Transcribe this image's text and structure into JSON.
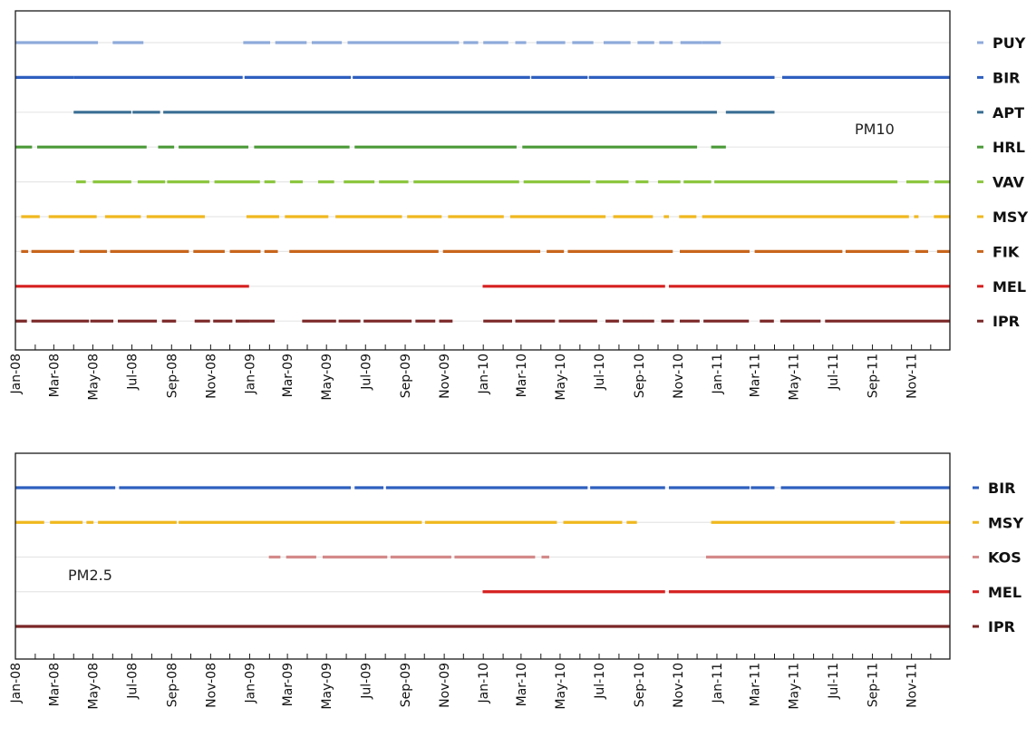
{
  "chart_data": [
    {
      "type": "line",
      "title": "",
      "annotation": "PM10",
      "x_range": [
        "2008-01-01",
        "2011-12-31"
      ],
      "tick_labels": [
        "Jan-08",
        "Mar-08",
        "May-08",
        "Jul-08",
        "Sep-08",
        "Nov-08",
        "Jan-09",
        "Mar-09",
        "May-09",
        "Jul-09",
        "Sep-09",
        "Nov-09",
        "Jan-10",
        "Mar-10",
        "May-10",
        "Jul-10",
        "Sep-10",
        "Nov-10",
        "Jan-11",
        "Mar-11",
        "May-11",
        "Jul-11",
        "Sep-11",
        "Nov-11"
      ],
      "grid": false,
      "legend_placement": "right",
      "series": [
        {
          "name": "PUY",
          "color": "#8eaadb",
          "availability": [
            [
              "2008-01-01",
              "2008-05-09"
            ],
            [
              "2008-06-01",
              "2008-07-19"
            ],
            [
              "2008-12-22",
              "2009-02-02"
            ],
            [
              "2009-02-10",
              "2009-03-31"
            ],
            [
              "2009-04-08",
              "2009-05-25"
            ],
            [
              "2009-06-03",
              "2009-08-27"
            ],
            [
              "2009-08-27",
              "2009-11-24"
            ],
            [
              "2009-12-01",
              "2009-12-24"
            ],
            [
              "2010-01-01",
              "2010-02-09"
            ],
            [
              "2010-02-20",
              "2010-03-09"
            ],
            [
              "2010-03-25",
              "2010-05-09"
            ],
            [
              "2010-05-20",
              "2010-06-22"
            ],
            [
              "2010-07-08",
              "2010-08-19"
            ],
            [
              "2010-08-30",
              "2010-09-25"
            ],
            [
              "2010-10-03",
              "2010-10-24"
            ],
            [
              "2010-11-05",
              "2010-12-09"
            ],
            [
              "2010-12-09",
              "2011-01-07"
            ]
          ]
        },
        {
          "name": "BIR",
          "color": "#2e5fbf",
          "availability": [
            [
              "2008-01-01",
              "2008-04-01"
            ],
            [
              "2008-04-01",
              "2008-12-21"
            ],
            [
              "2008-12-24",
              "2009-06-08"
            ],
            [
              "2009-06-11",
              "2010-03-15"
            ],
            [
              "2010-03-17",
              "2010-06-13"
            ],
            [
              "2010-06-15",
              "2011-04-01"
            ],
            [
              "2011-04-13",
              "2011-12-31"
            ]
          ]
        },
        {
          "name": "APT",
          "color": "#3a6f94",
          "availability": [
            [
              "2008-04-01",
              "2008-06-30"
            ],
            [
              "2008-07-02",
              "2008-08-14"
            ],
            [
              "2008-08-19",
              "2011-01-01"
            ],
            [
              "2011-01-15",
              "2011-04-01"
            ]
          ]
        },
        {
          "name": "HRL",
          "color": "#4b9a38",
          "availability": [
            [
              "2008-01-01",
              "2008-01-27"
            ],
            [
              "2008-02-04",
              "2008-07-24"
            ],
            [
              "2008-08-11",
              "2008-09-05"
            ],
            [
              "2008-09-12",
              "2008-12-30"
            ],
            [
              "2009-01-08",
              "2009-06-06"
            ],
            [
              "2009-06-14",
              "2010-02-22"
            ],
            [
              "2010-03-03",
              "2010-12-01"
            ],
            [
              "2010-12-23",
              "2011-01-15"
            ]
          ]
        },
        {
          "name": "VAV",
          "color": "#8cc63f",
          "availability": [
            [
              "2008-04-05",
              "2008-04-20"
            ],
            [
              "2008-05-01",
              "2008-06-30"
            ],
            [
              "2008-07-10",
              "2008-08-22"
            ],
            [
              "2008-08-25",
              "2008-10-30"
            ],
            [
              "2008-11-07",
              "2009-01-17"
            ],
            [
              "2009-01-24",
              "2009-02-10"
            ],
            [
              "2009-03-05",
              "2009-03-25"
            ],
            [
              "2009-04-18",
              "2009-05-13"
            ],
            [
              "2009-05-28",
              "2009-07-15"
            ],
            [
              "2009-07-22",
              "2009-09-06"
            ],
            [
              "2009-09-14",
              "2010-02-26"
            ],
            [
              "2010-03-05",
              "2010-06-17"
            ],
            [
              "2010-06-26",
              "2010-08-16"
            ],
            [
              "2010-08-27",
              "2010-09-16"
            ],
            [
              "2010-10-01",
              "2010-11-05"
            ],
            [
              "2010-11-10",
              "2010-12-23"
            ],
            [
              "2010-12-28",
              "2011-10-10"
            ],
            [
              "2011-10-24",
              "2011-11-28"
            ],
            [
              "2011-12-07",
              "2011-12-31"
            ]
          ]
        },
        {
          "name": "MSY",
          "color": "#f0b81e",
          "availability": [
            [
              "2008-01-10",
              "2008-02-08"
            ],
            [
              "2008-02-22",
              "2008-05-07"
            ],
            [
              "2008-05-20",
              "2008-07-15"
            ],
            [
              "2008-07-24",
              "2008-10-23"
            ],
            [
              "2008-12-27",
              "2009-02-16"
            ],
            [
              "2009-02-25",
              "2009-05-04"
            ],
            [
              "2009-05-15",
              "2009-08-27"
            ],
            [
              "2009-09-04",
              "2009-10-28"
            ],
            [
              "2009-11-07",
              "2010-02-02"
            ],
            [
              "2010-02-12",
              "2010-07-11"
            ],
            [
              "2010-07-23",
              "2010-09-23"
            ],
            [
              "2010-10-10",
              "2010-10-18"
            ],
            [
              "2010-11-03",
              "2010-11-30"
            ],
            [
              "2010-12-09",
              "2011-10-28"
            ],
            [
              "2011-11-05",
              "2011-11-12"
            ],
            [
              "2011-12-06",
              "2011-12-31"
            ]
          ]
        },
        {
          "name": "FIK",
          "color": "#c8651b",
          "availability": [
            [
              "2008-01-10",
              "2008-01-21"
            ],
            [
              "2008-01-26",
              "2008-04-02"
            ],
            [
              "2008-04-10",
              "2008-05-23"
            ],
            [
              "2008-05-28",
              "2008-09-28"
            ],
            [
              "2008-10-05",
              "2008-11-23"
            ],
            [
              "2008-12-01",
              "2009-01-18"
            ],
            [
              "2009-01-24",
              "2009-02-14"
            ],
            [
              "2009-03-04",
              "2009-10-23"
            ],
            [
              "2009-10-30",
              "2010-03-31"
            ],
            [
              "2010-04-10",
              "2010-05-07"
            ],
            [
              "2010-05-13",
              "2010-10-24"
            ],
            [
              "2010-11-04",
              "2011-02-21"
            ],
            [
              "2011-03-01",
              "2011-07-16"
            ],
            [
              "2011-07-21",
              "2011-10-28"
            ],
            [
              "2011-11-07",
              "2011-11-27"
            ],
            [
              "2011-12-11",
              "2011-12-31"
            ]
          ]
        },
        {
          "name": "MEL",
          "color": "#d62020",
          "availability": [
            [
              "2008-01-01",
              "2008-12-31"
            ],
            [
              "2009-12-31",
              "2010-10-12"
            ],
            [
              "2010-10-18",
              "2011-12-31"
            ]
          ]
        },
        {
          "name": "IPR",
          "color": "#7b2626",
          "availability": [
            [
              "2008-01-01",
              "2008-01-19"
            ],
            [
              "2008-01-26",
              "2008-04-25"
            ],
            [
              "2008-04-27",
              "2008-06-02"
            ],
            [
              "2008-06-09",
              "2008-08-09"
            ],
            [
              "2008-08-17",
              "2008-09-08"
            ],
            [
              "2008-10-07",
              "2008-10-31"
            ],
            [
              "2008-11-05",
              "2008-12-05"
            ],
            [
              "2008-12-10",
              "2009-01-01"
            ],
            [
              "2009-01-01",
              "2009-02-09"
            ],
            [
              "2009-03-24",
              "2009-05-16"
            ],
            [
              "2009-05-20",
              "2009-06-23"
            ],
            [
              "2009-06-28",
              "2009-09-11"
            ],
            [
              "2009-09-17",
              "2009-10-18"
            ],
            [
              "2009-10-24",
              "2009-11-14"
            ],
            [
              "2010-01-01",
              "2010-02-15"
            ],
            [
              "2010-02-20",
              "2010-04-23"
            ],
            [
              "2010-04-29",
              "2010-06-28"
            ],
            [
              "2010-07-11",
              "2010-08-01"
            ],
            [
              "2010-08-07",
              "2010-09-25"
            ],
            [
              "2010-10-06",
              "2010-10-26"
            ],
            [
              "2010-11-04",
              "2010-12-05"
            ],
            [
              "2010-12-11",
              "2011-02-20"
            ],
            [
              "2011-03-09",
              "2011-03-31"
            ],
            [
              "2011-04-10",
              "2011-06-12"
            ],
            [
              "2011-06-19",
              "2011-12-31"
            ]
          ]
        }
      ]
    },
    {
      "type": "line",
      "title": "",
      "annotation": "PM2.5",
      "x_range": [
        "2008-01-01",
        "2011-12-31"
      ],
      "tick_labels": [
        "Jan-08",
        "Mar-08",
        "May-08",
        "Jul-08",
        "Sep-08",
        "Nov-08",
        "Jan-09",
        "Mar-09",
        "May-09",
        "Jul-09",
        "Sep-09",
        "Nov-09",
        "Jan-10",
        "Mar-10",
        "May-10",
        "Jul-10",
        "Sep-10",
        "Nov-10",
        "Jan-11",
        "Mar-11",
        "May-11",
        "Jul-11",
        "Sep-11",
        "Nov-11"
      ],
      "grid": false,
      "legend_placement": "right",
      "series": [
        {
          "name": "BIR",
          "color": "#2e5fbf",
          "availability": [
            [
              "2008-01-01",
              "2008-06-05"
            ],
            [
              "2008-06-11",
              "2009-06-08"
            ],
            [
              "2009-06-14",
              "2009-07-29"
            ],
            [
              "2009-08-02",
              "2010-06-13"
            ],
            [
              "2010-06-17",
              "2010-10-12"
            ],
            [
              "2010-10-18",
              "2011-02-21"
            ],
            [
              "2011-02-23",
              "2011-04-01"
            ],
            [
              "2011-04-11",
              "2011-12-31"
            ]
          ]
        },
        {
          "name": "MSY",
          "color": "#f0b81e",
          "availability": [
            [
              "2008-01-01",
              "2008-02-15"
            ],
            [
              "2008-02-24",
              "2008-04-15"
            ],
            [
              "2008-04-21",
              "2008-05-02"
            ],
            [
              "2008-05-09",
              "2008-09-09"
            ],
            [
              "2008-09-12",
              "2009-09-27"
            ],
            [
              "2009-10-02",
              "2010-04-26"
            ],
            [
              "2010-05-06",
              "2010-08-06"
            ],
            [
              "2010-08-13",
              "2010-08-29"
            ],
            [
              "2010-12-23",
              "2011-10-06"
            ],
            [
              "2011-10-14",
              "2011-12-31"
            ]
          ]
        },
        {
          "name": "KOS",
          "color": "#d48a8a",
          "availability": [
            [
              "2009-01-31",
              "2009-02-18"
            ],
            [
              "2009-02-27",
              "2009-04-15"
            ],
            [
              "2009-04-25",
              "2009-08-04"
            ],
            [
              "2009-08-09",
              "2009-11-12"
            ],
            [
              "2009-11-17",
              "2010-03-23"
            ],
            [
              "2010-04-02",
              "2010-04-14"
            ],
            [
              "2010-12-15",
              "2011-12-31"
            ]
          ]
        },
        {
          "name": "MEL",
          "color": "#d62020",
          "availability": [
            [
              "2009-12-31",
              "2010-10-12"
            ],
            [
              "2010-10-18",
              "2011-12-31"
            ]
          ]
        },
        {
          "name": "IPR",
          "color": "#7b2626",
          "availability": [
            [
              "2008-01-01",
              "2011-12-31"
            ]
          ]
        }
      ]
    }
  ]
}
